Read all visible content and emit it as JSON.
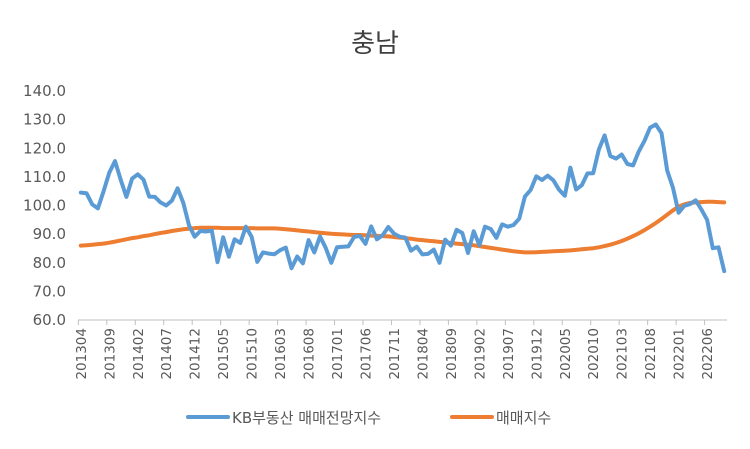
{
  "chart_data": {
    "type": "line",
    "title": "충남",
    "ylim": [
      60,
      140
    ],
    "yticks": [
      "60.0",
      "70.0",
      "80.0",
      "90.0",
      "100.0",
      "110.0",
      "120.0",
      "130.0",
      "140.0"
    ],
    "xtick_labels": [
      "201304",
      "201309",
      "201402",
      "201407",
      "201412",
      "201505",
      "201510",
      "201603",
      "201608",
      "201701",
      "201706",
      "201711",
      "201804",
      "201809",
      "201902",
      "201907",
      "201912",
      "202005",
      "202010",
      "202103",
      "202108",
      "202201",
      "202206"
    ],
    "x_start": "201304",
    "x_end": "202210",
    "series": [
      {
        "name": "KB부동산 매매전망지수",
        "color": "#5b9bd5",
        "values": [
          104.5,
          104.3,
          100.4,
          99.0,
          105.0,
          111.5,
          115.5,
          109.0,
          103.0,
          109.4,
          110.9,
          109.0,
          103.1,
          103.0,
          101.1,
          100.0,
          101.7,
          106.0,
          100.9,
          93.1,
          89.1,
          91.1,
          90.9,
          91.2,
          80.2,
          88.9,
          82.1,
          88.2,
          86.9,
          92.6,
          89.1,
          80.3,
          83.6,
          83.2,
          83.0,
          84.4,
          85.3,
          78.1,
          82.2,
          79.8,
          87.9,
          83.6,
          89.2,
          85.3,
          80.0,
          85.4,
          85.6,
          85.7,
          89.0,
          89.4,
          86.6,
          92.7,
          88.2,
          89.6,
          92.5,
          90.2,
          89.1,
          88.8,
          84.2,
          85.6,
          82.9,
          83.1,
          84.6,
          80.0,
          88.1,
          86.0,
          91.5,
          90.4,
          83.4,
          91.0,
          86.1,
          92.6,
          91.8,
          88.7,
          93.4,
          92.6,
          93.2,
          95.4,
          103.1,
          105.4,
          110.2,
          108.9,
          110.4,
          108.8,
          105.5,
          103.4,
          113.2,
          105.6,
          107.1,
          111.2,
          111.3,
          119.6,
          124.5,
          117.3,
          116.4,
          117.8,
          114.5,
          114.0,
          118.9,
          122.6,
          127.2,
          128.3,
          125.3,
          112.2,
          106.3,
          97.5,
          99.9,
          100.5,
          101.8,
          98.6,
          95.0,
          85.1,
          85.4,
          77.1
        ]
      },
      {
        "name": "매매지수",
        "color": "#ed7d31",
        "values": [
          86.0,
          86.1,
          86.3,
          86.5,
          86.7,
          87.0,
          87.4,
          87.8,
          88.2,
          88.6,
          88.9,
          89.3,
          89.6,
          90.0,
          90.4,
          90.7,
          91.1,
          91.4,
          91.7,
          91.9,
          92.1,
          92.2,
          92.2,
          92.2,
          92.2,
          92.1,
          92.1,
          92.1,
          92.1,
          92.1,
          92.1,
          92.0,
          92.0,
          92.0,
          92.0,
          91.9,
          91.7,
          91.5,
          91.3,
          91.1,
          90.9,
          90.7,
          90.5,
          90.3,
          90.1,
          90.0,
          89.9,
          89.8,
          89.7,
          89.7,
          89.6,
          89.5,
          89.4,
          89.3,
          89.2,
          89.0,
          88.8,
          88.6,
          88.4,
          88.1,
          87.9,
          87.7,
          87.5,
          87.3,
          87.1,
          86.9,
          86.7,
          86.5,
          86.3,
          86.1,
          85.8,
          85.5,
          85.2,
          84.9,
          84.6,
          84.3,
          84.0,
          83.8,
          83.6,
          83.6,
          83.7,
          83.8,
          83.9,
          84.0,
          84.1,
          84.2,
          84.3,
          84.5,
          84.7,
          84.9,
          85.1,
          85.4,
          85.8,
          86.3,
          86.9,
          87.6,
          88.4,
          89.3,
          90.3,
          91.4,
          92.6,
          93.9,
          95.3,
          96.8,
          98.3,
          99.6,
          100.4,
          100.9,
          101.1,
          101.2,
          101.3,
          101.3,
          101.2,
          101.1
        ]
      }
    ],
    "legend_position": "bottom"
  }
}
